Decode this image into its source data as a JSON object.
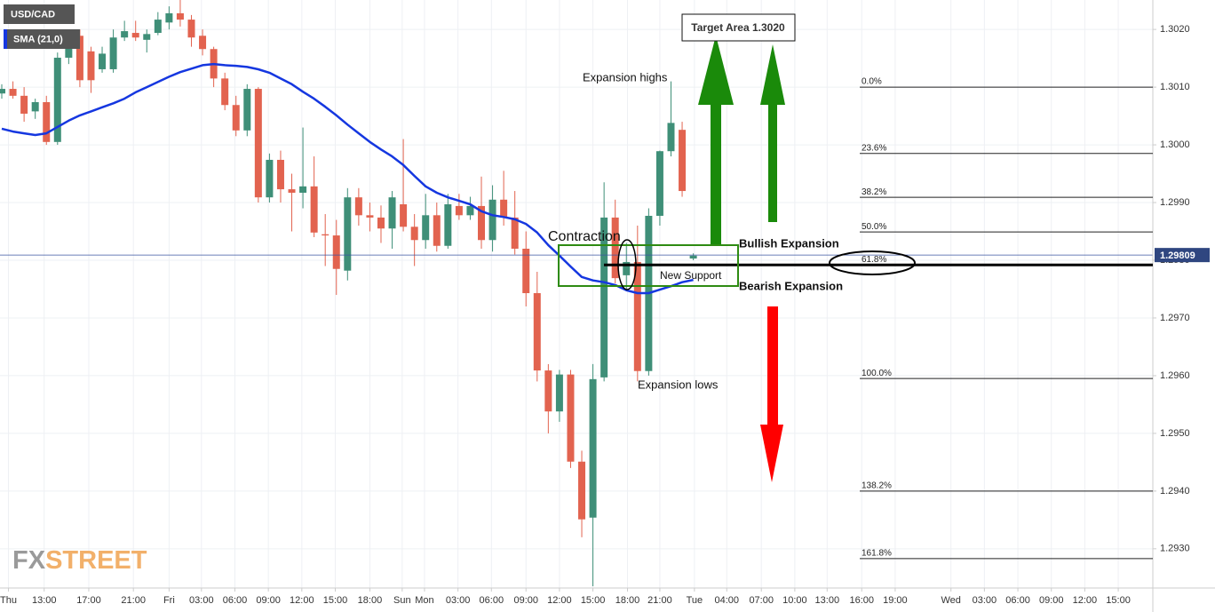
{
  "chart_data": {
    "type": "candlestick",
    "series": [
      {
        "name": "USD/CAD",
        "up_color": "#3f8f78",
        "down_color": "#e2634f",
        "open": [
          1.30089,
          1.30097,
          1.30085,
          1.30058,
          1.30074,
          1.30005,
          1.30151,
          1.30189,
          1.30162,
          1.30131,
          1.30131,
          1.30186,
          1.30194,
          1.30182,
          1.30194,
          1.30212,
          1.30228,
          1.30217,
          1.30189,
          1.30166,
          1.30115,
          1.30069,
          1.30025,
          1.30097,
          1.29909,
          1.29974,
          1.29923,
          1.29917,
          1.29928,
          1.29845,
          1.29843,
          1.29782,
          1.29909,
          1.29878,
          1.29874,
          1.29855,
          1.29897,
          1.29858,
          1.29835,
          1.29878,
          1.29825,
          1.29894,
          1.29878,
          1.29894,
          1.29835,
          1.29905,
          1.29874,
          1.2982,
          1.29743,
          1.29609,
          1.29538,
          1.29602,
          1.29451,
          1.29354,
          1.29597,
          1.29874,
          1.29774,
          1.29797,
          1.29608,
          1.29877,
          1.29989,
          1.30026,
          1.29803
        ],
        "high": [
          1.30105,
          1.3011,
          1.301,
          1.3008,
          1.30085,
          1.3016,
          1.30185,
          1.302,
          1.3017,
          1.3017,
          1.302,
          1.30215,
          1.30215,
          1.302,
          1.3023,
          1.3024,
          1.30255,
          1.30225,
          1.302,
          1.3017,
          1.30125,
          1.30085,
          1.30105,
          1.301,
          1.29985,
          1.2999,
          1.2995,
          1.3003,
          1.2998,
          1.2988,
          1.2987,
          1.29925,
          1.29925,
          1.299,
          1.29895,
          1.2992,
          1.3001,
          1.2988,
          1.29915,
          1.299,
          1.29915,
          1.29915,
          1.2991,
          1.29945,
          1.2993,
          1.29955,
          1.2992,
          1.2985,
          1.2978,
          1.2962,
          1.2961,
          1.2961,
          1.2947,
          1.2962,
          1.29935,
          1.29905,
          1.2983,
          1.2986,
          1.2989,
          1.2999,
          1.3011,
          1.3004,
          1.29812
        ],
        "low": [
          1.3008,
          1.3008,
          1.3004,
          1.30045,
          1.3,
          1.3,
          1.3014,
          1.301,
          1.3009,
          1.30125,
          1.30125,
          1.3018,
          1.3018,
          1.3016,
          1.3019,
          1.302,
          1.30205,
          1.3017,
          1.30155,
          1.301,
          1.3006,
          1.30015,
          1.30015,
          1.299,
          1.299,
          1.299,
          1.2985,
          1.2989,
          1.2984,
          1.2979,
          1.2974,
          1.29765,
          1.2986,
          1.2985,
          1.2983,
          1.2982,
          1.2985,
          1.2979,
          1.2982,
          1.29815,
          1.2982,
          1.2987,
          1.2987,
          1.2982,
          1.29815,
          1.2986,
          1.2981,
          1.2972,
          1.2959,
          1.295,
          1.2952,
          1.2944,
          1.2932,
          1.29235,
          1.2959,
          1.2976,
          1.2975,
          1.2959,
          1.296,
          1.2986,
          1.2998,
          1.2991,
          1.298
        ],
        "close": [
          1.30097,
          1.30085,
          1.30054,
          1.30074,
          1.30005,
          1.30151,
          1.30174,
          1.30112,
          1.30112,
          1.30158,
          1.30186,
          1.30197,
          1.30186,
          1.30192,
          1.30217,
          1.30228,
          1.30217,
          1.30186,
          1.30166,
          1.30115,
          1.30069,
          1.30025,
          1.30097,
          1.29909,
          1.29974,
          1.29923,
          1.29917,
          1.29928,
          1.29848,
          1.29843,
          1.29785,
          1.29909,
          1.29878,
          1.29874,
          1.29855,
          1.29909,
          1.29858,
          1.29835,
          1.29878,
          1.29825,
          1.29897,
          1.29878,
          1.29894,
          1.29835,
          1.29905,
          1.29874,
          1.2982,
          1.29743,
          1.29609,
          1.29538,
          1.29602,
          1.29451,
          1.29351,
          1.29594,
          1.29874,
          1.29769,
          1.29797,
          1.29608,
          1.29877,
          1.29989,
          1.30038,
          1.2992,
          1.29808
        ]
      },
      {
        "name": "SMA (21,0)",
        "color": "#1537e0",
        "values": [
          1.30028,
          1.30023,
          1.3002,
          1.30017,
          1.3002,
          1.30031,
          1.30042,
          1.30051,
          1.30058,
          1.30065,
          1.30072,
          1.3008,
          1.30091,
          1.301,
          1.30109,
          1.30118,
          1.30126,
          1.30132,
          1.30138,
          1.3014,
          1.30138,
          1.30137,
          1.30135,
          1.30131,
          1.30125,
          1.30115,
          1.30105,
          1.30092,
          1.3008,
          1.30066,
          1.30051,
          1.30035,
          1.3002,
          1.30005,
          1.29992,
          1.2998,
          1.29965,
          1.29946,
          1.29928,
          1.29917,
          1.29909,
          1.29903,
          1.29897,
          1.29885,
          1.29878,
          1.29875,
          1.29871,
          1.29863,
          1.29848,
          1.29826,
          1.29808,
          1.29789,
          1.29771,
          1.29765,
          1.29762,
          1.29757,
          1.29748,
          1.29743,
          1.29743,
          1.29749,
          1.29755,
          1.29762,
          1.29766
        ]
      }
    ],
    "last_price": 1.29809,
    "fib_levels": [
      {
        "value": 1.301,
        "label": "0.0%"
      },
      {
        "value": 1.29985,
        "label": "23.6%"
      },
      {
        "value": 1.29909,
        "label": "38.2%"
      },
      {
        "value": 1.29849,
        "label": "50.0%"
      },
      {
        "value": 1.29792,
        "label": "61.8%"
      },
      {
        "value": 1.29595,
        "label": "100.0%"
      },
      {
        "value": 1.294,
        "label": "138.2%"
      },
      {
        "value": 1.29283,
        "label": "161.8%"
      }
    ],
    "annotations": [
      "Target Area 1.3020",
      "Expansion highs",
      "Contraction",
      "Bullish Expansion",
      "New Support",
      "Bearish Expansion",
      "Expansion lows"
    ],
    "logo": [
      "FX",
      "STREET"
    ],
    "ylim": [
      1.29232,
      1.30251
    ],
    "yticks": [
      {
        "value": 1.302,
        "label": "1.3020"
      },
      {
        "value": 1.301,
        "label": "1.3010"
      },
      {
        "value": 1.3,
        "label": "1.3000"
      },
      {
        "value": 1.299,
        "label": "1.2990"
      },
      {
        "value": 1.298,
        "label": "1.2980"
      },
      {
        "value": 1.297,
        "label": "1.2970"
      },
      {
        "value": 1.296,
        "label": "1.2960"
      },
      {
        "value": 1.295,
        "label": "1.2950"
      },
      {
        "value": 1.294,
        "label": "1.2940"
      },
      {
        "value": 1.293,
        "label": "1.2930"
      }
    ],
    "xlim": [
      -0.16,
      103.2
    ],
    "xticks": [
      {
        "value": 0.6,
        "label": "Thu"
      },
      {
        "value": 3.8,
        "label": "13:00"
      },
      {
        "value": 7.8,
        "label": "17:00"
      },
      {
        "value": 11.8,
        "label": "21:00"
      },
      {
        "value": 15.0,
        "label": "Fri"
      },
      {
        "value": 17.9,
        "label": "03:00"
      },
      {
        "value": 20.9,
        "label": "06:00"
      },
      {
        "value": 23.9,
        "label": "09:00"
      },
      {
        "value": 26.9,
        "label": "12:00"
      },
      {
        "value": 29.9,
        "label": "15:00"
      },
      {
        "value": 33.0,
        "label": "18:00"
      },
      {
        "value": 35.9,
        "label": "Sun"
      },
      {
        "value": 37.9,
        "label": "Mon"
      },
      {
        "value": 40.9,
        "label": "03:00"
      },
      {
        "value": 43.9,
        "label": "06:00"
      },
      {
        "value": 47.0,
        "label": "09:00"
      },
      {
        "value": 50.0,
        "label": "12:00"
      },
      {
        "value": 53.0,
        "label": "15:00"
      },
      {
        "value": 56.1,
        "label": "18:00"
      },
      {
        "value": 59.0,
        "label": "21:00"
      },
      {
        "value": 62.1,
        "label": "Tue"
      },
      {
        "value": 65.0,
        "label": "04:00"
      },
      {
        "value": 68.1,
        "label": "07:00"
      },
      {
        "value": 71.1,
        "label": "10:00"
      },
      {
        "value": 74.0,
        "label": "13:00"
      },
      {
        "value": 77.1,
        "label": "16:00"
      },
      {
        "value": 80.1,
        "label": "19:00"
      },
      {
        "value": 85.1,
        "label": "Wed"
      },
      {
        "value": 88.1,
        "label": "03:00"
      },
      {
        "value": 91.1,
        "label": "06:00"
      },
      {
        "value": 94.1,
        "label": "09:00"
      },
      {
        "value": 97.1,
        "label": "12:00"
      },
      {
        "value": 100.1,
        "label": "15:00"
      }
    ],
    "grid": true
  }
}
